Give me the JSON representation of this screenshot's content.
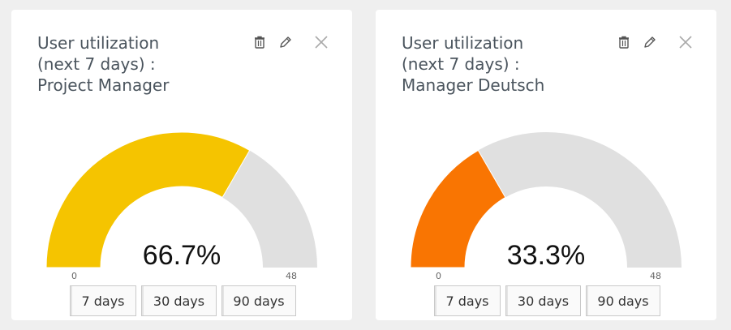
{
  "cards": [
    {
      "title_lines": [
        "User utilization",
        "(next 7 days) :",
        "Project Manager"
      ],
      "gauge": {
        "value": 66.7,
        "min": 0,
        "max": 48,
        "fill_fraction": 0.667,
        "color": "#f5c400",
        "track_color": "#e0e0e0"
      },
      "value_label": "66.7%",
      "min_label": "0",
      "max_label": "48",
      "buttons": [
        "7 days",
        "30 days",
        "90 days"
      ]
    },
    {
      "title_lines": [
        "User utilization",
        "(next 7 days) :",
        "Manager Deutsch"
      ],
      "gauge": {
        "value": 33.3,
        "min": 0,
        "max": 48,
        "fill_fraction": 0.333,
        "color": "#f97502",
        "track_color": "#e0e0e0"
      },
      "value_label": "33.3%",
      "min_label": "0",
      "max_label": "48",
      "buttons": [
        "7 days",
        "30 days",
        "90 days"
      ]
    }
  ],
  "icons": {
    "delete": "trash-icon",
    "edit": "pencil-icon",
    "close": "close-icon"
  }
}
